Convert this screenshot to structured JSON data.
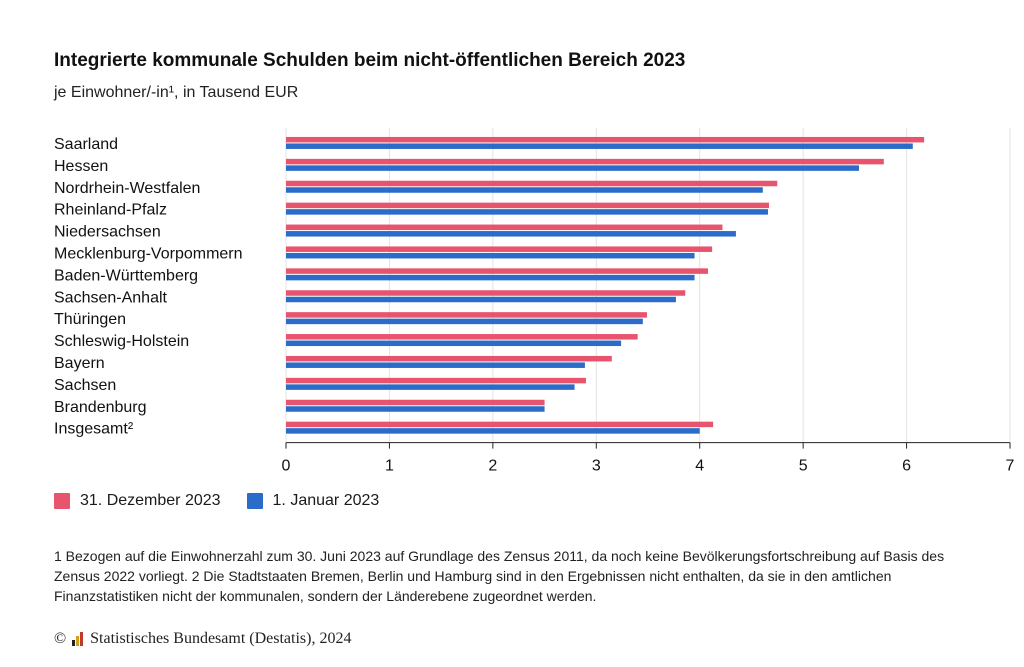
{
  "header": {
    "title": "Integrierte kommunale Schulden beim nicht-öffentlichen Bereich 2023",
    "subtitle": "je Einwohner/-in¹, in Tausend EUR"
  },
  "chart_data": {
    "type": "bar",
    "orientation": "horizontal",
    "categories": [
      "Saarland",
      "Hessen",
      "Nordrhein-Westfalen",
      "Rheinland-Pfalz",
      "Niedersachsen",
      "Mecklenburg-Vorpommern",
      "Baden-Württemberg",
      "Sachsen-Anhalt",
      "Thüringen",
      "Schleswig-Holstein",
      "Bayern",
      "Sachsen",
      "Brandenburg",
      "Insgesamt²"
    ],
    "series": [
      {
        "name": "31. Dezember 2023",
        "color": "#e8546e",
        "values": [
          6.17,
          5.78,
          4.75,
          4.67,
          4.22,
          4.12,
          4.08,
          3.86,
          3.49,
          3.4,
          3.15,
          2.9,
          2.5,
          4.13
        ]
      },
      {
        "name": "1. Januar 2023",
        "color": "#2c6cc9",
        "values": [
          6.06,
          5.54,
          4.61,
          4.66,
          4.35,
          3.95,
          3.95,
          3.77,
          3.45,
          3.24,
          2.89,
          2.79,
          2.5,
          4.0
        ]
      }
    ],
    "xlim": [
      0,
      7
    ],
    "xticks": [
      "0",
      "1",
      "2",
      "3",
      "4",
      "5",
      "6",
      "7"
    ],
    "grid": true,
    "legend_position": "bottom-left"
  },
  "footnote": "1 Bezogen auf die Einwohnerzahl zum 30. Juni 2023 auf Grundlage des Zensus 2011, da noch keine Bevölkerungsfortschreibung auf Basis des Zensus 2022 vorliegt. 2 Die Stadtstaaten Bremen, Berlin und Hamburg sind in den Ergebnissen nicht enthalten, da sie in den amtlichen Finanzstatistiken nicht der kommunalen, sondern der Länderebene zugeordnet werden.",
  "copyright": {
    "symbol": "©",
    "text": "Statistisches Bundesamt (Destatis), 2024"
  }
}
